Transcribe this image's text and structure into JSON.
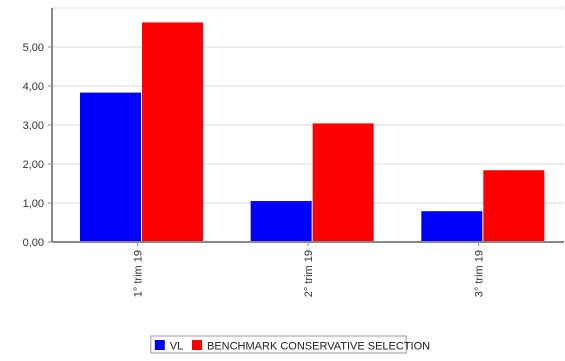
{
  "chart_data": {
    "type": "bar",
    "categories": [
      "1° trim  19",
      "2° trim  19",
      "3° trim  19"
    ],
    "series": [
      {
        "name": "VL",
        "color": "#0000ff",
        "values": [
          3.83,
          1.05,
          0.79
        ]
      },
      {
        "name": "BENCHMARK CONSERVATIVE SELECTION",
        "color": "#ff0000",
        "values": [
          5.63,
          3.04,
          1.84
        ]
      }
    ],
    "y_ticks": [
      "0,00",
      "1,00",
      "2,00",
      "3,00",
      "4,00",
      "5,00"
    ],
    "ylim": [
      0,
      6
    ],
    "grid": true,
    "legend": "bottom-center",
    "title": "",
    "xlabel": "",
    "ylabel": ""
  }
}
